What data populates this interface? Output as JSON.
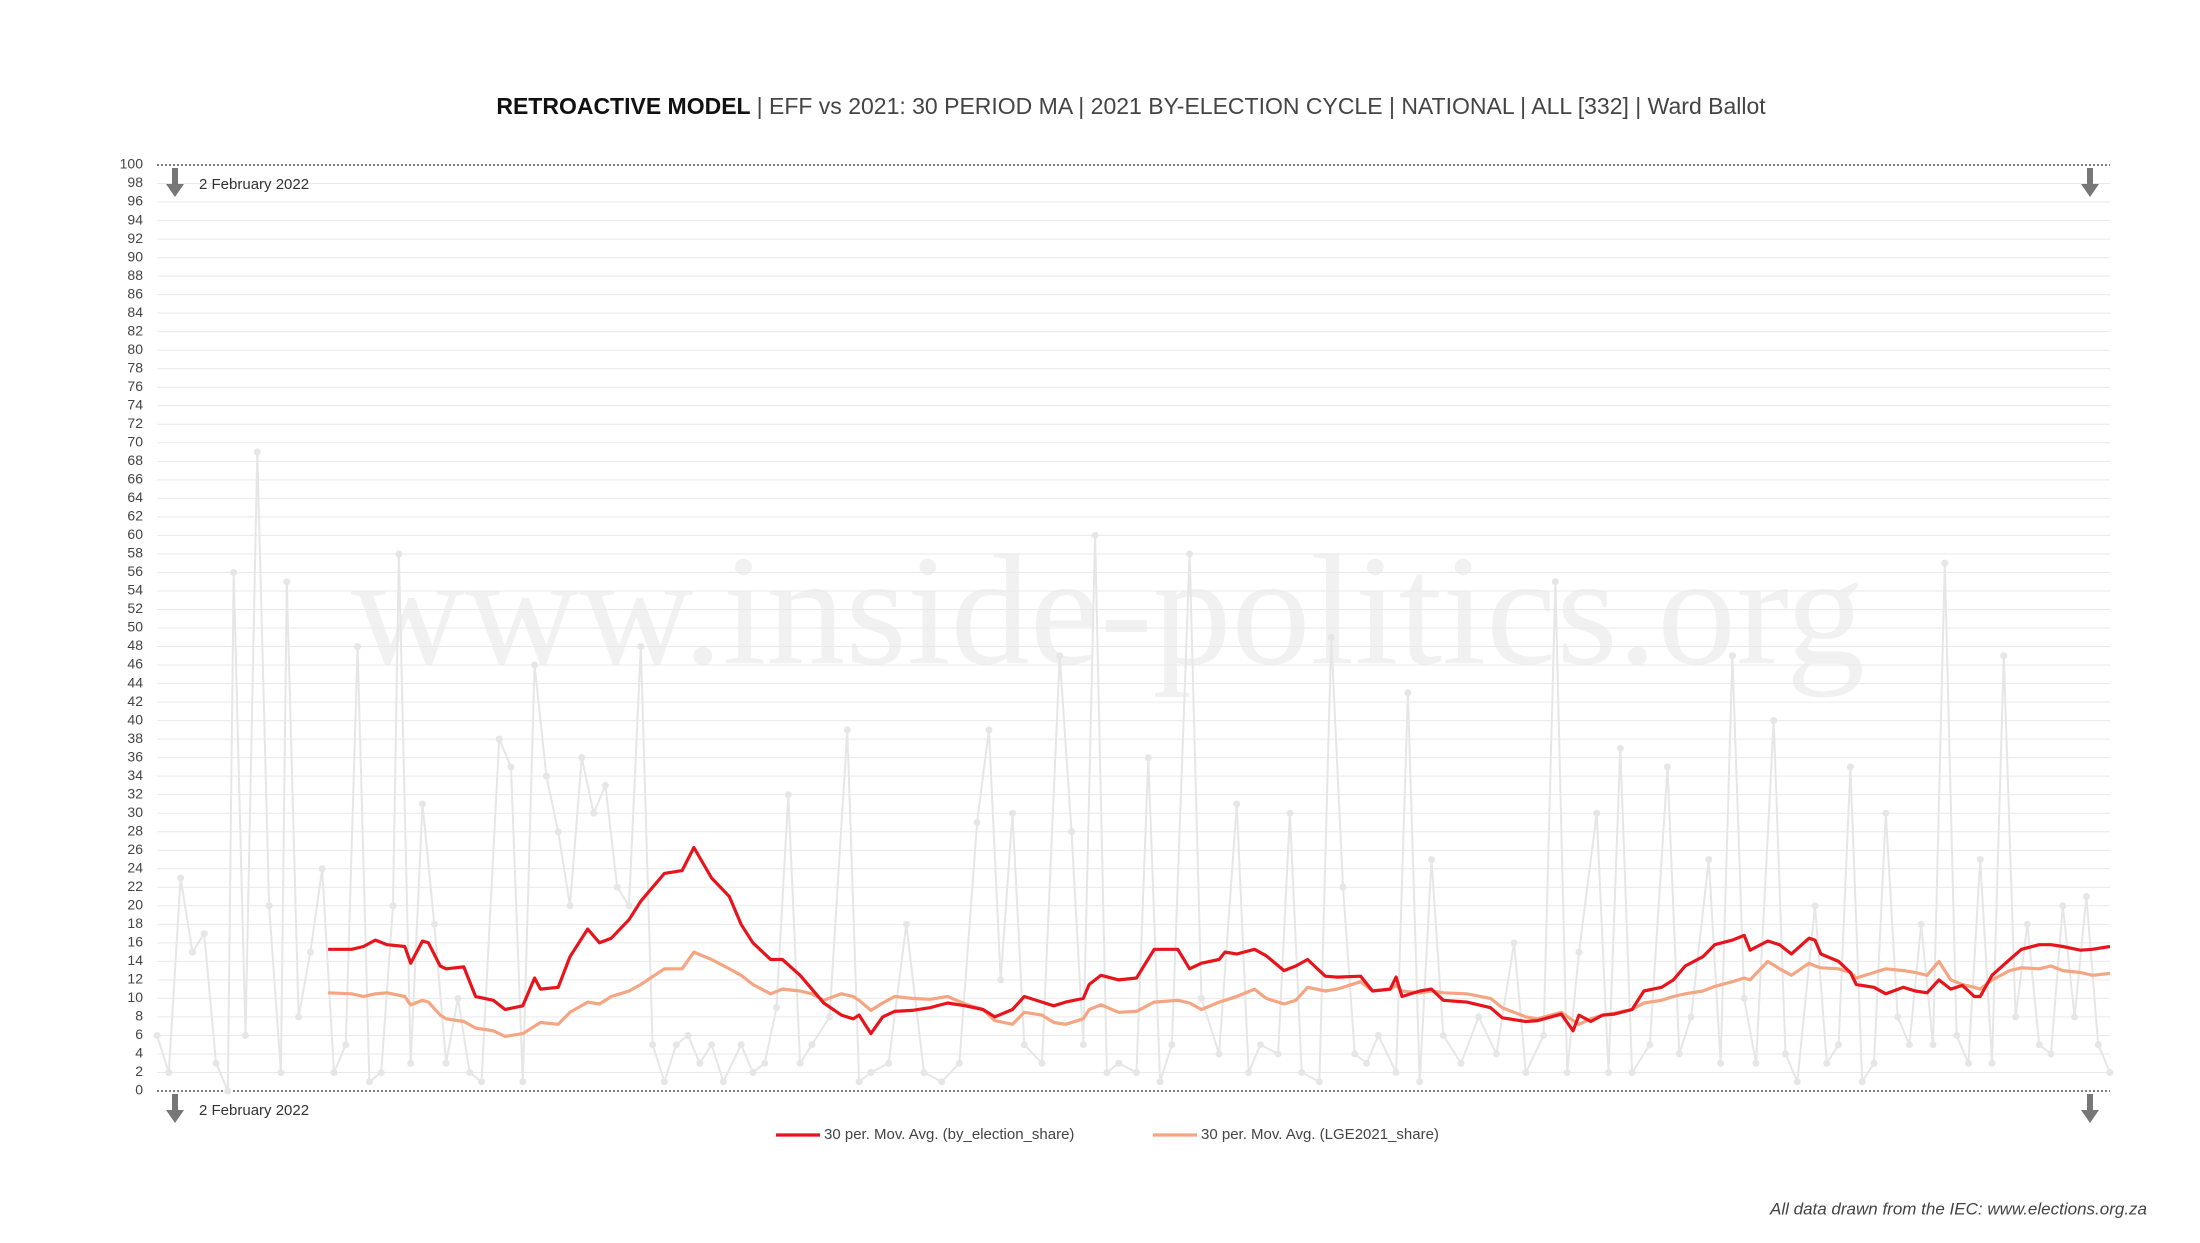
{
  "chart_data": {
    "type": "line",
    "title": "RETROACTIVE MODEL",
    "subtitle": "| EFF vs 2021: 30 PERIOD MA | 2021 BY-ELECTION CYCLE | NATIONAL | ALL [332] | Ward Ballot",
    "watermark": "www.inside-politics.org",
    "annotations": [
      "2 February 2022",
      "2 February 2022"
    ],
    "source": "All data drawn from the IEC: www.elections.org.za",
    "xlim": [
      1,
      332
    ],
    "ylim": [
      0,
      100
    ],
    "yticks": [
      0,
      2,
      4,
      6,
      8,
      10,
      12,
      14,
      16,
      18,
      20,
      22,
      24,
      26,
      28,
      30,
      32,
      34,
      36,
      38,
      40,
      42,
      44,
      46,
      48,
      50,
      52,
      54,
      56,
      58,
      60,
      62,
      64,
      66,
      68,
      70,
      72,
      74,
      76,
      78,
      80,
      82,
      84,
      86,
      88,
      90,
      92,
      94,
      96,
      98,
      100
    ],
    "grid": true,
    "series": [
      {
        "color": "#e6e6e6",
        "markers": true,
        "x": [
          1,
          3,
          5,
          7,
          9,
          11,
          13,
          14,
          16,
          18,
          20,
          22,
          23,
          25,
          27,
          29,
          31,
          33,
          35,
          37,
          39,
          41,
          42,
          44,
          46,
          48,
          50,
          52,
          54,
          56,
          59,
          61,
          63,
          65,
          67,
          69,
          71,
          73,
          75,
          77,
          79,
          81,
          83,
          85,
          87,
          89,
          91,
          93,
          95,
          97,
          100,
          102,
          104,
          106,
          108,
          110,
          112,
          115,
          118,
          120,
          122,
          125,
          128,
          131,
          134,
          137,
          140,
          142,
          144,
          146,
          148,
          151,
          154,
          156,
          158,
          160,
          162,
          164,
          167,
          169,
          171,
          173,
          176,
          178,
          181,
          184,
          186,
          188,
          191,
          193,
          195,
          198,
          200,
          202,
          204,
          206,
          208,
          211,
          213,
          215,
          217,
          219,
          222,
          225,
          228,
          231,
          233,
          236,
          238,
          240,
          242,
          245,
          247,
          249,
          251,
          254,
          257,
          259,
          261,
          264,
          266,
          268,
          270,
          272,
          275,
          277,
          279,
          282,
          284,
          286,
          288,
          290,
          292,
          294,
          296,
          298,
          300,
          302,
          304,
          306,
          308,
          310,
          312,
          314,
          316,
          318,
          320,
          322,
          324,
          326,
          328,
          330,
          332
        ],
        "values": [
          6,
          2,
          23,
          15,
          17,
          3,
          0,
          56,
          6,
          69,
          20,
          2,
          55,
          8,
          15,
          24,
          2,
          5,
          48,
          1,
          2,
          20,
          58,
          3,
          31,
          18,
          3,
          10,
          2,
          1,
          38,
          35,
          1,
          46,
          34,
          28,
          20,
          36,
          30,
          33,
          22,
          20,
          48,
          5,
          1,
          5,
          6,
          3,
          5,
          1,
          5,
          2,
          3,
          9,
          32,
          3,
          5,
          8,
          39,
          1,
          2,
          3,
          18,
          2,
          1,
          3,
          29,
          39,
          12,
          30,
          5,
          3,
          47,
          28,
          5,
          60,
          2,
          3,
          2,
          36,
          1,
          5,
          58,
          10,
          4,
          31,
          2,
          5,
          4,
          30,
          2,
          1,
          49,
          22,
          4,
          3,
          6,
          2,
          43,
          1,
          25,
          6,
          3,
          8,
          4,
          16,
          2,
          6,
          55,
          2,
          15,
          30,
          2,
          37,
          2,
          5,
          35,
          4,
          8,
          25,
          3,
          47,
          10,
          3,
          40,
          4,
          1,
          20,
          3,
          5,
          35,
          1,
          3,
          30,
          8,
          5,
          18,
          5,
          57,
          6,
          3,
          25,
          3,
          47,
          8,
          18,
          5,
          4,
          20,
          8,
          21,
          5,
          2
        ]
      },
      {
        "name": "30 per. Mov. Avg. (by_election_share)",
        "color": "#e8141c",
        "x": [
          30,
          34,
          36,
          38,
          40,
          43,
          44,
          46,
          47,
          49,
          50,
          53,
          55,
          58,
          60,
          63,
          65,
          66,
          69,
          71,
          74,
          76,
          78,
          81,
          83,
          87,
          90,
          92,
          95,
          98,
          100,
          102,
          105,
          107,
          110,
          112,
          114,
          117,
          119,
          120,
          122,
          124,
          126,
          129,
          132,
          135,
          138,
          141,
          143,
          146,
          148,
          151,
          153,
          155,
          158,
          159,
          161,
          164,
          167,
          170,
          174,
          176,
          178,
          181,
          182,
          184,
          187,
          189,
          192,
          194,
          196,
          199,
          201,
          205,
          207,
          210,
          211,
          212,
          215,
          217,
          219,
          223,
          227,
          229,
          233,
          235,
          239,
          241,
          242,
          244,
          246,
          248,
          251,
          253,
          256,
          258,
          260,
          263,
          265,
          268,
          270,
          271,
          274,
          276,
          278,
          281,
          282,
          283,
          286,
          288,
          289,
          292,
          294,
          297,
          299,
          301,
          303,
          305,
          307,
          309,
          310,
          312,
          315,
          317,
          320,
          322,
          324,
          327,
          329,
          332
        ],
        "values": [
          15.3,
          15.3,
          15.6,
          16.3,
          15.8,
          15.6,
          13.8,
          16.2,
          16,
          13.5,
          13.2,
          13.4,
          10.2,
          9.8,
          8.8,
          9.2,
          12.2,
          11,
          11.2,
          14.5,
          17.5,
          16,
          16.5,
          18.5,
          20.5,
          23.5,
          23.8,
          26.3,
          23,
          21,
          18,
          16,
          14.2,
          14.2,
          12.5,
          11,
          9.5,
          8.2,
          7.8,
          8.2,
          6.2,
          8,
          8.6,
          8.7,
          9,
          9.5,
          9.2,
          8.8,
          8,
          8.8,
          10.2,
          9.6,
          9.2,
          9.6,
          10,
          11.5,
          12.5,
          12,
          12.2,
          15.3,
          15.3,
          13.2,
          13.8,
          14.2,
          15,
          14.8,
          15.3,
          14.6,
          13,
          13.5,
          14.2,
          12.4,
          12.3,
          12.4,
          10.8,
          11,
          12.3,
          10.2,
          10.8,
          11,
          9.8,
          9.6,
          9,
          7.9,
          7.5,
          7.6,
          8.3,
          6.5,
          8.2,
          7.5,
          8.2,
          8.3,
          8.8,
          10.8,
          11.2,
          12,
          13.5,
          14.5,
          15.8,
          16.3,
          16.8,
          15.2,
          16.2,
          15.8,
          14.8,
          16.5,
          16.3,
          14.8,
          14,
          12.8,
          11.5,
          11.2,
          10.5,
          11.2,
          10.8,
          10.6,
          12,
          11,
          11.4,
          10.2,
          10.2,
          12.5,
          14.2,
          15.3,
          15.8,
          15.8,
          15.6,
          15.2,
          15.3,
          15.6
        ]
      },
      {
        "name": "30 per. Mov. Avg. (LGE2021_share)",
        "color": "#f4a582",
        "x": [
          30,
          34,
          36,
          38,
          40,
          43,
          44,
          46,
          47,
          49,
          50,
          53,
          55,
          58,
          60,
          63,
          65,
          66,
          69,
          71,
          74,
          76,
          78,
          81,
          83,
          87,
          90,
          92,
          95,
          98,
          100,
          102,
          105,
          107,
          110,
          112,
          114,
          117,
          119,
          120,
          122,
          124,
          126,
          129,
          132,
          135,
          138,
          141,
          143,
          146,
          148,
          151,
          153,
          155,
          158,
          159,
          161,
          164,
          167,
          170,
          174,
          176,
          178,
          181,
          182,
          184,
          187,
          189,
          192,
          194,
          196,
          199,
          201,
          205,
          207,
          210,
          211,
          212,
          215,
          217,
          219,
          223,
          227,
          229,
          233,
          235,
          239,
          241,
          242,
          244,
          246,
          248,
          251,
          253,
          256,
          258,
          260,
          263,
          265,
          268,
          270,
          271,
          274,
          276,
          278,
          281,
          282,
          283,
          286,
          288,
          289,
          292,
          294,
          297,
          299,
          301,
          303,
          305,
          307,
          309,
          310,
          312,
          315,
          317,
          320,
          322,
          324,
          327,
          329,
          332
        ],
        "values": [
          10.6,
          10.5,
          10.2,
          10.5,
          10.6,
          10.2,
          9.3,
          9.8,
          9.6,
          8.2,
          7.8,
          7.5,
          6.8,
          6.5,
          5.9,
          6.2,
          7,
          7.4,
          7.2,
          8.5,
          9.6,
          9.4,
          10.2,
          10.8,
          11.5,
          13.2,
          13.2,
          15,
          14.2,
          13.2,
          12.5,
          11.5,
          10.5,
          11,
          10.8,
          10.5,
          9.8,
          10.5,
          10.2,
          9.8,
          8.7,
          9.5,
          10.2,
          10,
          9.9,
          10.2,
          9.4,
          8.8,
          7.6,
          7.2,
          8.5,
          8.2,
          7.4,
          7.2,
          7.8,
          8.8,
          9.3,
          8.5,
          8.6,
          9.6,
          9.8,
          9.5,
          8.8,
          9.6,
          9.8,
          10.2,
          11,
          10,
          9.4,
          9.8,
          11.2,
          10.8,
          11,
          11.8,
          10.8,
          11,
          11.4,
          10.8,
          10.6,
          10.8,
          10.6,
          10.5,
          10,
          9,
          8,
          7.8,
          8.5,
          7.6,
          7.2,
          7.8,
          8.2,
          8.4,
          8.8,
          9.5,
          9.8,
          10.2,
          10.5,
          10.8,
          11.3,
          11.8,
          12.2,
          12,
          14,
          13.2,
          12.5,
          13.8,
          13.5,
          13.3,
          13.2,
          12.8,
          12.2,
          12.8,
          13.2,
          13,
          12.8,
          12.5,
          14,
          12,
          11.5,
          11.2,
          11,
          12,
          13,
          13.3,
          13.2,
          13.5,
          13,
          12.8,
          12.5,
          12.7
        ]
      }
    ]
  }
}
